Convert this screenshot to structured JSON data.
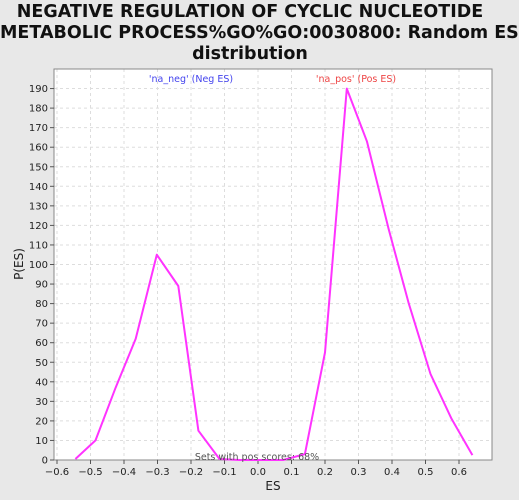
{
  "chart_data": {
    "type": "line",
    "title_lines": [
      "NEGATIVE REGULATION OF CYCLIC NUCLEOTIDE",
      "METABOLIC PROCESS%GO%GO:0030800: Random ES",
      "distribution"
    ],
    "xlabel": "ES",
    "ylabel": "P(ES)",
    "xlim": [
      -0.6,
      0.7
    ],
    "ylim": [
      0,
      200
    ],
    "xticks": [
      -0.6,
      -0.5,
      -0.4,
      -0.3,
      -0.2,
      -0.1,
      0.0,
      0.1,
      0.2,
      0.3,
      0.4,
      0.5,
      0.6
    ],
    "xtick_labels": [
      "−0.6",
      "−0.5",
      "−0.4",
      "−0.3",
      "−0.2",
      "−0.1",
      "0.0",
      "0.1",
      "0.2",
      "0.3",
      "0.4",
      "0.5",
      "0.6"
    ],
    "yticks": [
      0,
      10,
      20,
      30,
      40,
      50,
      60,
      70,
      80,
      90,
      100,
      110,
      120,
      130,
      140,
      150,
      160,
      170,
      180,
      190
    ],
    "grid": true,
    "annotations": {
      "neg": "'na_neg' (Neg ES)",
      "pos": "'na_pos' (Pos ES)",
      "footer": "Sets with pos scores: 68%"
    },
    "colors": {
      "line": "#ff33ff",
      "neg_label": "#4444ee",
      "pos_label": "#ee4444",
      "plot_bg": "#ffffff",
      "grid": "#dddddd"
    },
    "series": [
      {
        "x": [
          -0.545,
          -0.485,
          -0.425,
          -0.365,
          -0.302,
          -0.238,
          -0.178,
          -0.115,
          -0.055,
          0.01,
          0.075,
          0.14,
          0.2,
          0.265,
          0.325,
          0.39,
          0.45,
          0.515,
          0.578,
          0.64
        ],
        "y": [
          0.5,
          10,
          37,
          62,
          105,
          89,
          15,
          0.5,
          0,
          0,
          0,
          3,
          55,
          190,
          163,
          118,
          80,
          44,
          21,
          2.5
        ]
      }
    ]
  }
}
